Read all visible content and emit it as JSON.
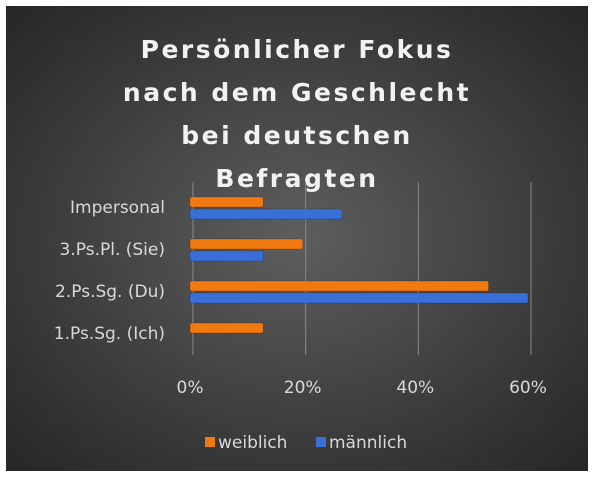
{
  "chart_data": {
    "type": "hbar",
    "title": "Persönlicher Fokus nach dem Geschlecht bei deutschen Befragten",
    "categories": [
      "1.Ps.Sg. (Ich)",
      "2.Ps.Sg. (Du)",
      "3.Ps.Pl. (Sie)",
      "Impersonal"
    ],
    "series": [
      {
        "name": "weiblich",
        "color": "#f07a10",
        "values": [
          13,
          53,
          20,
          13
        ]
      },
      {
        "name": "männlich",
        "color": "#3a6fd8",
        "values": [
          0,
          60,
          13,
          27
        ]
      }
    ],
    "xlim": [
      0,
      60
    ],
    "xticks": [
      {
        "value": 0,
        "label": "0%"
      },
      {
        "value": 20,
        "label": "20%"
      },
      {
        "value": 40,
        "label": "40%"
      },
      {
        "value": 60,
        "label": "60%"
      }
    ],
    "grid": true,
    "legend": "bottom"
  }
}
